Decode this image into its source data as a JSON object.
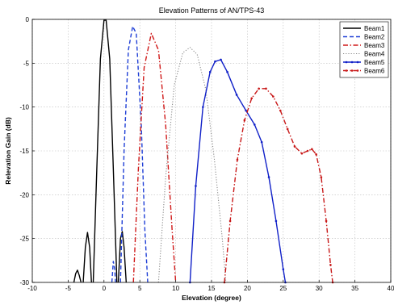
{
  "chart_data": {
    "type": "line",
    "title": "Elevation Patterns of AN/TPS-43",
    "xlabel": "Elevation (degree)",
    "ylabel": "Relevation Gain (dB)",
    "xlim": [
      -10,
      40
    ],
    "ylim": [
      -30,
      0
    ],
    "xticks": [
      -10,
      -5,
      0,
      5,
      10,
      15,
      20,
      25,
      30,
      35,
      40
    ],
    "yticks": [
      0,
      -5,
      -10,
      -15,
      -20,
      -25,
      -30
    ],
    "xtick_labels": [
      "-10",
      "-5",
      "0",
      "5",
      "10",
      "15",
      "20",
      "25",
      "30",
      "35",
      "40"
    ],
    "ytick_labels": [
      "0",
      "-5",
      "-10",
      "-15",
      "-20",
      "-25",
      "-30"
    ],
    "grid": true,
    "legend_position": "top-right",
    "series": [
      {
        "name": "Beam1",
        "color": "#000000",
        "style": "solid",
        "segments": [
          [
            [
              -4.2,
              -30
            ],
            [
              -3.95,
              -29.0
            ],
            [
              -3.7,
              -28.6
            ],
            [
              -3.45,
              -29.2
            ],
            [
              -3.2,
              -30
            ]
          ],
          [
            [
              -2.9,
              -30
            ],
            [
              -2.6,
              -26.0
            ],
            [
              -2.3,
              -24.3
            ],
            [
              -2.0,
              -26.0
            ],
            [
              -1.75,
              -30
            ]
          ],
          [
            [
              -1.5,
              -30
            ],
            [
              -1.0,
              -17.0
            ],
            [
              -0.5,
              -4.5
            ],
            [
              0.0,
              -0.1
            ],
            [
              0.3,
              -0.1
            ],
            [
              0.8,
              -4.5
            ],
            [
              1.3,
              -17.0
            ],
            [
              1.8,
              -30
            ]
          ],
          [
            [
              2.0,
              -30
            ],
            [
              2.3,
              -25.0
            ],
            [
              2.55,
              -24.2
            ],
            [
              2.8,
              -26.0
            ],
            [
              3.1,
              -30
            ]
          ]
        ]
      },
      {
        "name": "Beam2",
        "color": "#1f3fd6",
        "style": "dashed",
        "segments": [
          [
            [
              1.1,
              -30
            ],
            [
              1.3,
              -27.6
            ],
            [
              1.5,
              -28.5
            ],
            [
              1.6,
              -30
            ]
          ],
          [
            [
              2.3,
              -30
            ],
            [
              2.8,
              -15.0
            ],
            [
              3.4,
              -3.5
            ],
            [
              4.0,
              -0.8
            ],
            [
              4.5,
              -1.6
            ],
            [
              5.2,
              -12.0
            ],
            [
              5.7,
              -24.0
            ],
            [
              6.1,
              -30
            ]
          ]
        ]
      },
      {
        "name": "Beam3",
        "color": "#d01818",
        "style": "dashdot",
        "segments": [
          [
            [
              4.1,
              -30
            ],
            [
              4.8,
              -17.0
            ],
            [
              5.6,
              -5.5
            ],
            [
              6.6,
              -1.6
            ],
            [
              7.6,
              -3.5
            ],
            [
              8.6,
              -12.0
            ],
            [
              9.5,
              -24.0
            ],
            [
              10.0,
              -30
            ]
          ]
        ]
      },
      {
        "name": "Beam4",
        "color": "#8a8a8a",
        "style": "dotted",
        "segments": [
          [
            [
              7.6,
              -30
            ],
            [
              8.6,
              -18.0
            ],
            [
              9.8,
              -7.5
            ],
            [
              11.0,
              -3.8
            ],
            [
              12.0,
              -3.2
            ],
            [
              13.0,
              -4.0
            ],
            [
              14.2,
              -8.0
            ],
            [
              15.4,
              -16.0
            ],
            [
              16.5,
              -25.0
            ],
            [
              17.0,
              -30
            ]
          ]
        ]
      },
      {
        "name": "Beam5",
        "color": "#1020c8",
        "style": "solid-dot",
        "segments": [
          [
            [
              12.0,
              -30
            ],
            [
              12.8,
              -19.0
            ],
            [
              13.8,
              -10.0
            ],
            [
              14.8,
              -6.0
            ],
            [
              15.5,
              -4.8
            ],
            [
              16.3,
              -4.6
            ],
            [
              17.2,
              -6.0
            ],
            [
              18.5,
              -8.6
            ],
            [
              19.8,
              -10.4
            ],
            [
              21.0,
              -12.0
            ],
            [
              22.0,
              -14.0
            ],
            [
              23.0,
              -18.0
            ],
            [
              24.0,
              -23.0
            ],
            [
              25.0,
              -28.5
            ],
            [
              25.3,
              -30
            ]
          ]
        ]
      },
      {
        "name": "Beam6",
        "color": "#c81818",
        "style": "dashdot-dot",
        "segments": [
          [
            [
              16.8,
              -30
            ],
            [
              17.6,
              -23.0
            ],
            [
              18.6,
              -16.0
            ],
            [
              19.6,
              -11.5
            ],
            [
              20.6,
              -9.0
            ],
            [
              21.6,
              -7.9
            ],
            [
              22.6,
              -7.9
            ],
            [
              23.6,
              -8.8
            ],
            [
              24.6,
              -10.4
            ],
            [
              25.6,
              -12.5
            ],
            [
              26.6,
              -14.5
            ],
            [
              27.6,
              -15.3
            ],
            [
              28.4,
              -15.0
            ],
            [
              29.0,
              -14.8
            ],
            [
              29.6,
              -15.4
            ],
            [
              30.3,
              -18.0
            ],
            [
              31.0,
              -23.0
            ],
            [
              31.6,
              -28.0
            ],
            [
              31.9,
              -30
            ]
          ]
        ]
      }
    ]
  }
}
